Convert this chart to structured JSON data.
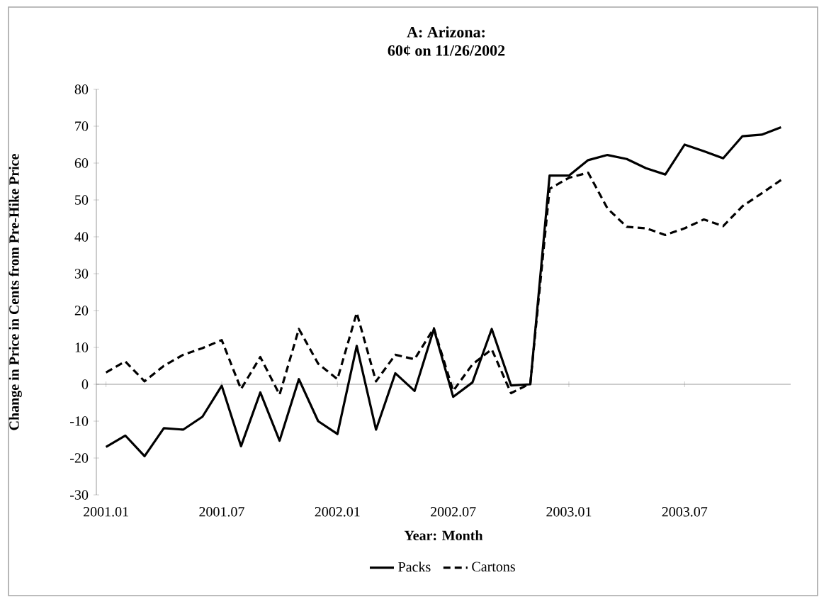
{
  "chart_data": {
    "type": "line",
    "title": "A: Arizona:",
    "subtitle": "60¢ on 11/26/2002",
    "xlabel": "Year: Month",
    "ylabel": "Change in Price in Cents from Pre-Hike Price",
    "categories": [
      "2001.01",
      null,
      null,
      null,
      null,
      null,
      "2001.07",
      null,
      null,
      null,
      null,
      null,
      "2002.01",
      null,
      null,
      null,
      null,
      null,
      "2002.07",
      null,
      null,
      null,
      null,
      null,
      "2003.01",
      null,
      null,
      null,
      null,
      null,
      "2003.07",
      null,
      null,
      null,
      null,
      null
    ],
    "series": [
      {
        "name": "Packs",
        "color": "#000000",
        "line_style": "solid",
        "values": [
          -17,
          -13.9,
          -19.5,
          -11.9,
          -12.3,
          -8.8,
          -0.4,
          -16.8,
          -2.2,
          -15.3,
          1.4,
          -10,
          -13.5,
          10.4,
          -12.3,
          3,
          -1.8,
          15,
          -3.4,
          0.5,
          15,
          -0.3,
          0,
          56.6,
          56.6,
          60.8,
          62.2,
          61.1,
          58.6,
          56.9,
          65,
          63.2,
          61.3,
          67.3,
          67.7,
          69.7
        ]
      },
      {
        "name": "Cartons",
        "color": "#000000",
        "line_style": "dashed",
        "values": [
          3.2,
          6.2,
          0.8,
          5,
          8,
          9.8,
          12,
          -1.3,
          7.4,
          -2.8,
          15,
          5.6,
          1.4,
          19.4,
          0.8,
          8,
          6.8,
          15.2,
          -1.8,
          5.4,
          9.5,
          -2.4,
          0.2,
          53,
          56,
          57.4,
          47.7,
          42.7,
          42.3,
          40.5,
          42.3,
          44.7,
          42.9,
          48.3,
          51.8,
          55.4
        ]
      }
    ],
    "ylim": [
      -30,
      80
    ],
    "yticks": [
      -30,
      -20,
      -10,
      0,
      10,
      20,
      30,
      40,
      50,
      60,
      70,
      80
    ],
    "legend": "bottom",
    "marker": "none"
  }
}
